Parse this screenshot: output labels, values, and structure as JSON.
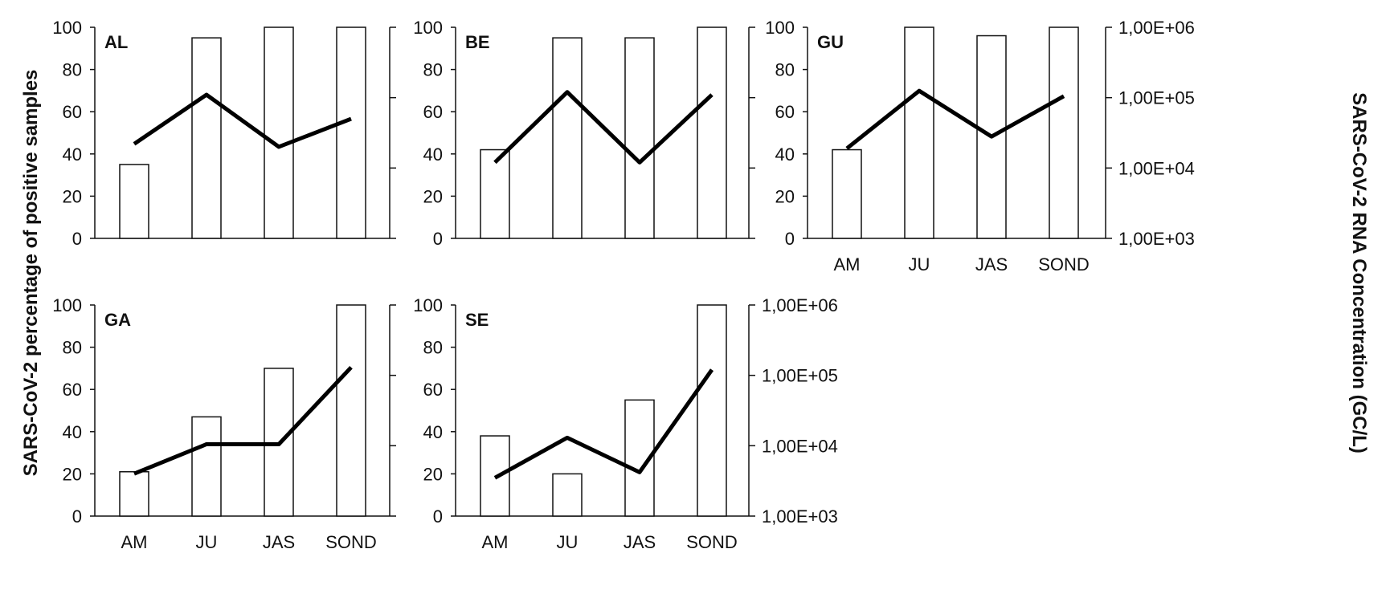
{
  "colors": {
    "ink": "#111111",
    "bar_fill": "#ffffff",
    "line": "#000000"
  },
  "left_axis_title": "SARS-CoV-2 percentage of positive samples",
  "right_axis_title": "SARS-CoV-2 RNA Concentration (GC/L)",
  "chart_data": [
    {
      "type": "bar",
      "panel": "AL",
      "categories": [
        "AM",
        "JU",
        "JAS",
        "SOND"
      ],
      "series": [
        {
          "values": [
            35,
            95,
            100,
            100
          ]
        },
        {
          "values": [
            22000,
            110000,
            20000,
            50000
          ]
        }
      ],
      "ylim": [
        0,
        100
      ],
      "y2lim": [
        1000,
        1000000
      ],
      "y2scale": "log",
      "x_tick_labels_shown": false,
      "y2_tick_labels_shown": false
    },
    {
      "type": "bar",
      "panel": "BE",
      "categories": [
        "AM",
        "JU",
        "JAS",
        "SOND"
      ],
      "series": [
        {
          "values": [
            42,
            95,
            95,
            100
          ]
        },
        {
          "values": [
            12000,
            120000,
            12000,
            110000
          ]
        }
      ],
      "ylim": [
        0,
        100
      ],
      "y2lim": [
        1000,
        1000000
      ],
      "y2scale": "log",
      "x_tick_labels_shown": false,
      "y2_tick_labels_shown": false
    },
    {
      "type": "bar",
      "panel": "GU",
      "categories": [
        "AM",
        "JU",
        "JAS",
        "SOND"
      ],
      "series": [
        {
          "values": [
            42,
            100,
            96,
            100
          ]
        },
        {
          "values": [
            19000,
            125000,
            28000,
            105000
          ]
        }
      ],
      "ylim": [
        0,
        100
      ],
      "y2lim": [
        1000,
        1000000
      ],
      "y2scale": "log",
      "x_tick_labels_shown": true,
      "y2_tick_labels_shown": true
    },
    {
      "type": "bar",
      "panel": "GA",
      "categories": [
        "AM",
        "JU",
        "JAS",
        "SOND"
      ],
      "series": [
        {
          "values": [
            21,
            47,
            70,
            100
          ]
        },
        {
          "values": [
            4000,
            10500,
            10500,
            130000
          ]
        }
      ],
      "ylim": [
        0,
        100
      ],
      "y2lim": [
        1000,
        1000000
      ],
      "y2scale": "log",
      "x_tick_labels_shown": true,
      "y2_tick_labels_shown": false
    },
    {
      "type": "bar",
      "panel": "SE",
      "categories": [
        "AM",
        "JU",
        "JAS",
        "SOND"
      ],
      "series": [
        {
          "values": [
            38,
            20,
            55,
            100
          ]
        },
        {
          "values": [
            3500,
            13000,
            4200,
            120000
          ]
        }
      ],
      "ylim": [
        0,
        100
      ],
      "y2lim": [
        1000,
        1000000
      ],
      "y2scale": "log",
      "x_tick_labels_shown": true,
      "y2_tick_labels_shown": true
    }
  ],
  "y_ticks": [
    "0",
    "20",
    "40",
    "60",
    "80",
    "100"
  ],
  "y2_ticks": [
    "1,00E+03",
    "1,00E+04",
    "1,00E+05",
    "1,00E+06"
  ]
}
